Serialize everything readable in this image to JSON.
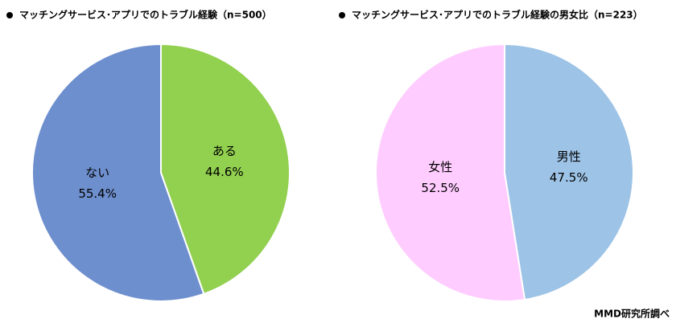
{
  "chart_data": [
    {
      "type": "pie",
      "title": "マッチングサービス･アプリでのトラブル経験（n=500）",
      "categories": [
        "ある",
        "ない"
      ],
      "values": [
        44.6,
        55.4
      ],
      "value_labels": [
        "44.6%",
        "55.4%"
      ],
      "colors": [
        "#92d050",
        "#6e8fce"
      ]
    },
    {
      "type": "pie",
      "title": "マッチングサービス･アプリでのトラブル経験の男女比（n=223）",
      "categories": [
        "男性",
        "女性"
      ],
      "values": [
        47.5,
        52.5
      ],
      "value_labels": [
        "47.5%",
        "52.5%"
      ],
      "colors": [
        "#9dc3e6",
        "#ffccff"
      ]
    }
  ],
  "source": "MMD研究所調べ"
}
